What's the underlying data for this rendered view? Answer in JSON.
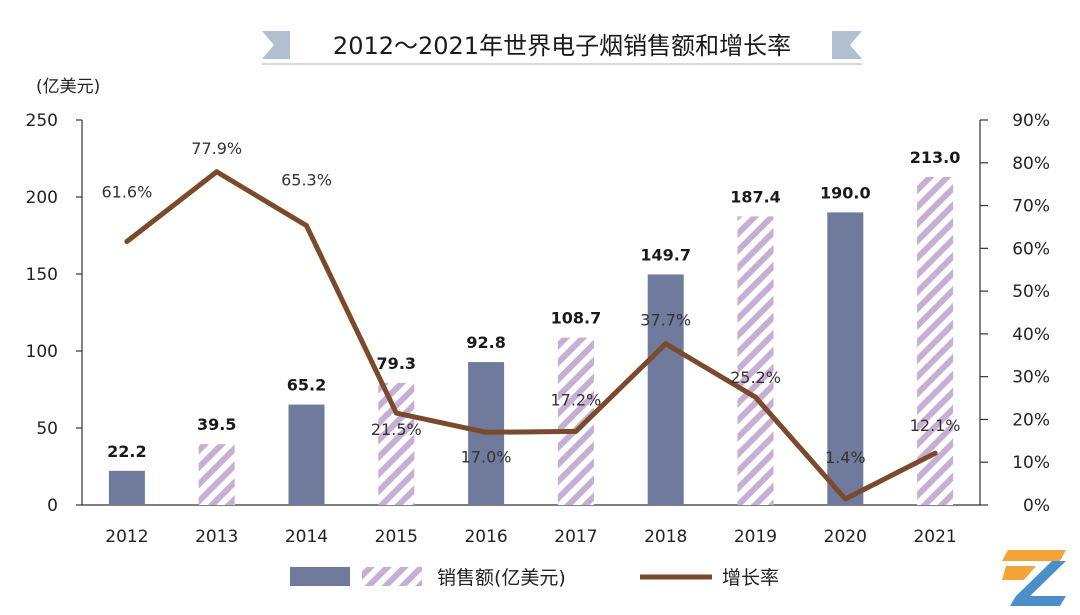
{
  "title": "2012～2021年世界电子烟销售额和增长率",
  "colors": {
    "bar_solid": "#707a9c",
    "bar_hatch": "#c6aed4",
    "line": "#7a4a2c",
    "ribbon": "#b2bfd0"
  },
  "chart_data": {
    "type": "bar",
    "title": "2012～2021年世界电子烟销售额和增长率",
    "ylabel_left": "(亿美元)",
    "categories": [
      "2012",
      "2013",
      "2014",
      "2015",
      "2016",
      "2017",
      "2018",
      "2019",
      "2020",
      "2021"
    ],
    "series": [
      {
        "name": "销售额(亿美元)",
        "type": "bar",
        "axis": "left",
        "values": [
          22.2,
          39.5,
          65.2,
          79.3,
          92.8,
          108.7,
          149.7,
          187.4,
          190.0,
          213.0
        ],
        "value_labels": [
          "22.2",
          "39.5",
          "65.2",
          "79.3",
          "92.8",
          "108.7",
          "149.7",
          "187.4",
          "190.0",
          "213.0"
        ],
        "styles": [
          "solid",
          "hatch",
          "solid",
          "hatch",
          "solid",
          "hatch",
          "solid",
          "hatch",
          "solid",
          "hatch"
        ]
      },
      {
        "name": "增长率",
        "type": "line",
        "axis": "right",
        "values": [
          61.6,
          77.9,
          65.3,
          21.5,
          17.0,
          17.2,
          37.7,
          25.2,
          1.4,
          12.1
        ],
        "value_labels": [
          "61.6%",
          "77.9%",
          "65.3%",
          "21.5%",
          "17.0%",
          "17.2%",
          "37.7%",
          "25.2%",
          "1.4%",
          "12.1%"
        ]
      }
    ],
    "y_left": {
      "min": 0,
      "max": 250,
      "ticks": [
        "0",
        "50",
        "100",
        "150",
        "200",
        "250"
      ]
    },
    "y_right": {
      "min": 0,
      "max": 90,
      "ticks": [
        "0%",
        "10%",
        "20%",
        "30%",
        "40%",
        "50%",
        "60%",
        "70%",
        "80%",
        "90%"
      ]
    },
    "grid": false,
    "legend": {
      "position": "bottom",
      "bar_label": "销售额(亿美元)",
      "line_label": "增长率"
    }
  }
}
